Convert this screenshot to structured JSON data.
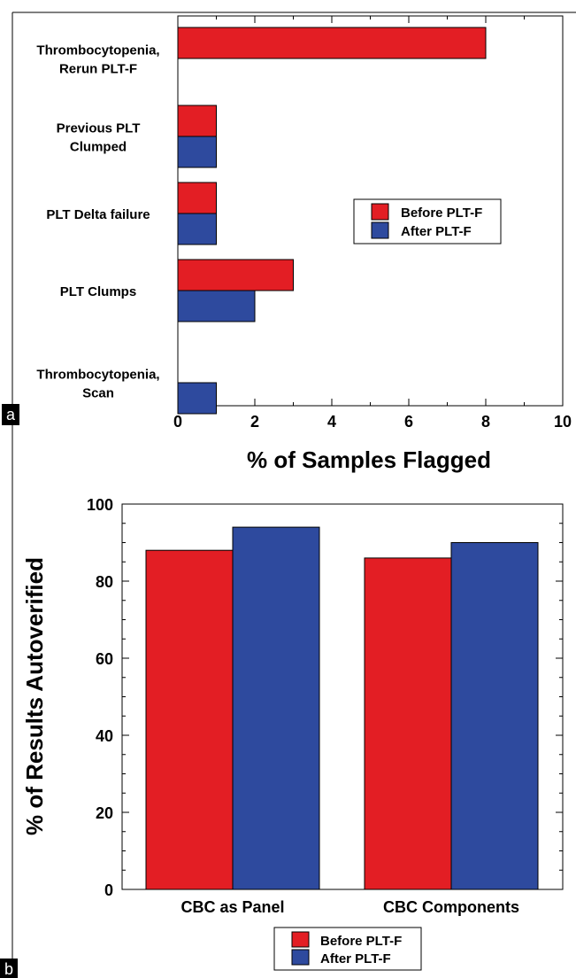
{
  "colors": {
    "before": "#e31e24",
    "after": "#2e4a9e",
    "axis": "#000000"
  },
  "chart_data": [
    {
      "panel_label": "a",
      "type": "bar",
      "orientation": "horizontal",
      "categories": [
        [
          "Thrombocytopenia,",
          "Rerun PLT-F"
        ],
        [
          "Previous PLT",
          "Clumped"
        ],
        [
          "PLT Delta failure"
        ],
        [
          "PLT Clumps"
        ],
        [
          "Thrombocytopenia,",
          "Scan"
        ]
      ],
      "series": [
        {
          "name": "Before PLT-F",
          "values": [
            8,
            1,
            1,
            3,
            0
          ]
        },
        {
          "name": "After PLT-F",
          "values": [
            0,
            1,
            1,
            2,
            1
          ]
        }
      ],
      "xlabel": "% of Samples Flagged",
      "xlim": [
        0,
        10
      ],
      "xticks": [
        "0",
        "2",
        "4",
        "6",
        "8",
        "10"
      ],
      "legend": "right-center",
      "grid": false
    },
    {
      "panel_label": "b",
      "type": "bar",
      "orientation": "vertical",
      "categories": [
        "CBC as Panel",
        "CBC Components"
      ],
      "series": [
        {
          "name": "Before PLT-F",
          "values": [
            88,
            86
          ]
        },
        {
          "name": "After PLT-F",
          "values": [
            94,
            90
          ]
        }
      ],
      "ylabel": "% of Results Autoverified",
      "ylim": [
        0,
        100
      ],
      "yticks": [
        "0",
        "20",
        "40",
        "60",
        "80",
        "100"
      ],
      "legend": "bottom-center",
      "grid": false
    }
  ]
}
